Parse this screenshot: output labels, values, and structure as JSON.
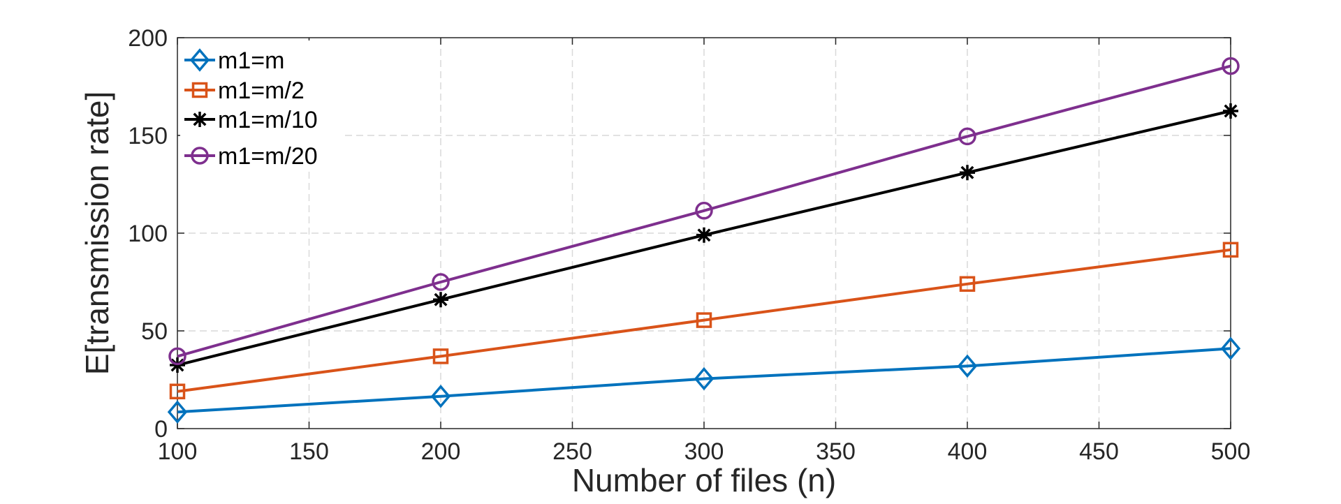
{
  "chart_data": {
    "type": "line",
    "xlabel": "Number of files (n)",
    "ylabel": "E[transmission rate]",
    "xlim": [
      100,
      500
    ],
    "ylim": [
      0,
      200
    ],
    "xticks": [
      100,
      150,
      200,
      250,
      300,
      350,
      400,
      450,
      500
    ],
    "yticks": [
      0,
      50,
      100,
      150,
      200
    ],
    "grid": true,
    "legend_position": "top-left",
    "x": [
      100,
      200,
      300,
      400,
      500
    ],
    "series": [
      {
        "name": "m1=m",
        "color": "#0072BD",
        "marker": "diamond",
        "values": [
          8.5,
          16.5,
          25.5,
          32,
          41
        ]
      },
      {
        "name": "m1=m/2",
        "color": "#D95319",
        "marker": "square",
        "values": [
          19,
          37,
          55.5,
          74,
          91.5
        ]
      },
      {
        "name": "m1=m/10",
        "color": "#000000",
        "marker": "asterisk",
        "values": [
          32.5,
          66,
          99,
          131,
          162.5
        ]
      },
      {
        "name": "m1=m/20",
        "color": "#7E2F8E",
        "marker": "circle",
        "values": [
          37,
          75,
          111.5,
          149.5,
          185.5
        ]
      }
    ]
  }
}
